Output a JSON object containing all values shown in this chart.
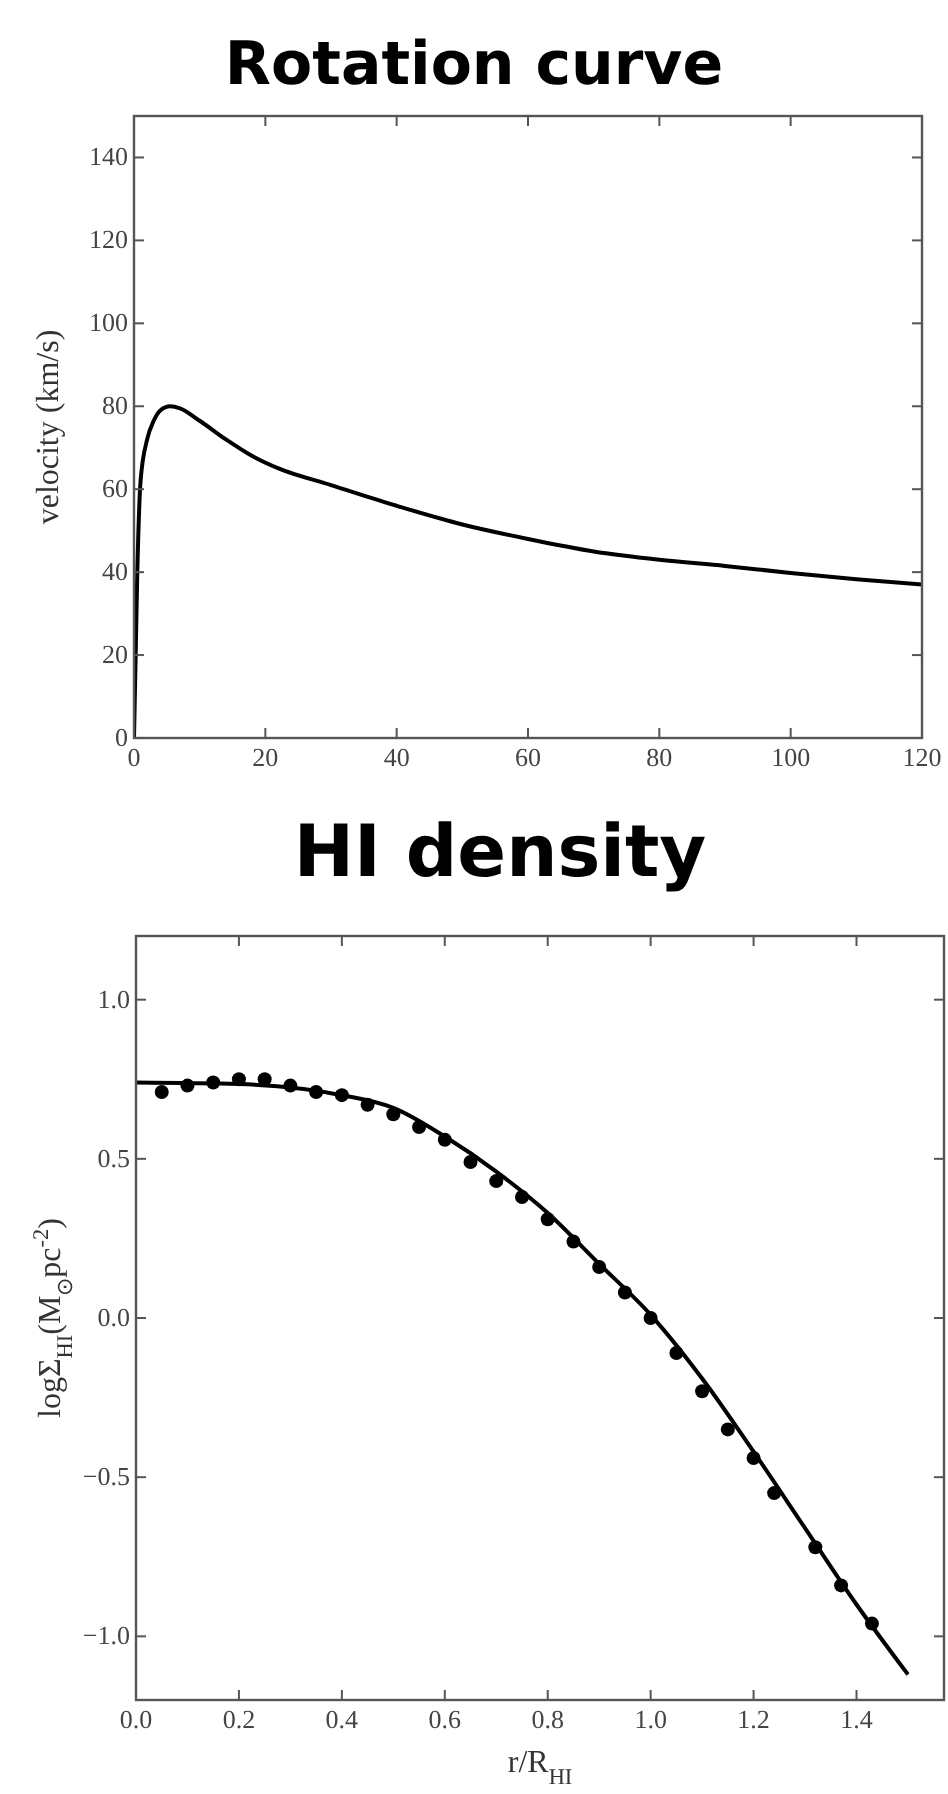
{
  "chart_data": [
    {
      "type": "line",
      "title": "Rotation curve",
      "ylabel": "velocity (km/s)",
      "xlim": [
        0,
        120
      ],
      "ylim": [
        0,
        150
      ],
      "xticks": [
        0,
        20,
        40,
        60,
        80,
        100,
        120
      ],
      "yticks": [
        0,
        20,
        40,
        60,
        80,
        100,
        120,
        140
      ],
      "grid": false,
      "series": [
        {
          "color": "#000000",
          "x": [
            0,
            0.5,
            1,
            2,
            3,
            4,
            5.5,
            7,
            10,
            14,
            18,
            22,
            30,
            40,
            50,
            60,
            70,
            80,
            90,
            100,
            110,
            120
          ],
          "values": [
            0,
            40,
            62,
            72,
            76.5,
            79,
            80,
            79.5,
            76.5,
            72,
            68,
            65,
            61,
            56,
            51.5,
            48,
            45,
            43,
            41.5,
            39.8,
            38.3,
            37
          ]
        }
      ]
    },
    {
      "type": "scatter",
      "title": "HI density",
      "xlabel": "r/R$_{HI}$",
      "ylabel": "logΣ$_{HI}$(M$_{⊙}$pc$^{-2}$)",
      "xlim": [
        0,
        1.57
      ],
      "ylim": [
        -1.2,
        1.2
      ],
      "xticks": [
        {
          "value": 0,
          "label": "0.0"
        },
        {
          "value": 0.2,
          "label": "0.2"
        },
        {
          "value": 0.4,
          "label": "0.4"
        },
        {
          "value": 0.6,
          "label": "0.6"
        },
        {
          "value": 0.8,
          "label": "0.8"
        },
        {
          "value": 1,
          "label": "1.0"
        },
        {
          "value": 1.2,
          "label": "1.2"
        },
        {
          "value": 1.4,
          "label": "1.4"
        }
      ],
      "yticks": [
        {
          "value": -1,
          "label": "−1.0"
        },
        {
          "value": -0.5,
          "label": "−0.5"
        },
        {
          "value": 0,
          "label": "0.0"
        },
        {
          "value": 0.5,
          "label": "0.5"
        },
        {
          "value": 1,
          "label": "1.0"
        }
      ],
      "grid": false,
      "series": [
        {
          "marker": "circle",
          "color": "#000000",
          "x": [
            0.05,
            0.1,
            0.15,
            0.2,
            0.25,
            0.3,
            0.35,
            0.4,
            0.45,
            0.5,
            0.55,
            0.6,
            0.65,
            0.7,
            0.75,
            0.8,
            0.85,
            0.9,
            0.95,
            1.0,
            1.05,
            1.1,
            1.15,
            1.2,
            1.24,
            1.32,
            1.37,
            1.43
          ],
          "values": [
            0.71,
            0.73,
            0.74,
            0.75,
            0.75,
            0.73,
            0.71,
            0.7,
            0.67,
            0.64,
            0.6,
            0.56,
            0.49,
            0.43,
            0.38,
            0.31,
            0.24,
            0.16,
            0.08,
            0.0,
            -0.11,
            -0.23,
            -0.35,
            -0.44,
            -0.55,
            -0.72,
            -0.84,
            -0.96
          ]
        },
        {
          "type": "line",
          "color": "#000000",
          "x": [
            0,
            0.2,
            0.4,
            0.5,
            0.6,
            0.7,
            0.8,
            0.9,
            1.0,
            1.1,
            1.2,
            1.3,
            1.4,
            1.5
          ],
          "values": [
            0.74,
            0.735,
            0.7,
            0.66,
            0.57,
            0.46,
            0.33,
            0.17,
            0.01,
            -0.19,
            -0.42,
            -0.66,
            -0.9,
            -1.12
          ]
        }
      ]
    }
  ]
}
